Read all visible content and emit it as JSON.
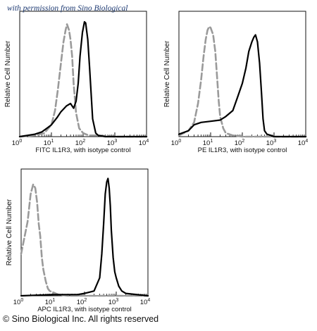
{
  "watermark": "with permission from Sino Biological",
  "copyright": "© Sino Biological Inc. All rights reserved",
  "chart_data": [
    {
      "type": "area",
      "x_scale": "log",
      "xlim": [
        1,
        10000
      ],
      "x_ticks": [
        {
          "base": "10",
          "exp": "0"
        },
        {
          "base": "10",
          "exp": "1"
        },
        {
          "base": "10",
          "exp": "2"
        },
        {
          "base": "10",
          "exp": "3"
        },
        {
          "base": "10",
          "exp": "4"
        }
      ],
      "xlabel": "FITC  IL1R3,  with isotype control",
      "ylabel": "Relative Cell Number",
      "ylim": [
        0,
        1
      ],
      "grid": false,
      "series": [
        {
          "role": "isotype control",
          "color": "#9a9a9a",
          "style": "dashed",
          "x": [
            1,
            3,
            6,
            10,
            13,
            16,
            20,
            24,
            28,
            31,
            36,
            40,
            45,
            50,
            60,
            75,
            100,
            150,
            300,
            1000,
            10000
          ],
          "y": [
            0.0,
            0.01,
            0.03,
            0.1,
            0.22,
            0.4,
            0.62,
            0.8,
            0.9,
            0.95,
            0.9,
            0.82,
            0.68,
            0.45,
            0.2,
            0.07,
            0.03,
            0.01,
            0.01,
            0.0,
            0.0
          ]
        },
        {
          "role": "IL1R3",
          "color": "#000000",
          "style": "solid",
          "x": [
            1,
            3,
            5,
            8,
            10,
            15,
            20,
            30,
            40,
            50,
            60,
            70,
            80,
            95,
            110,
            120,
            140,
            160,
            180,
            200,
            250,
            300,
            500,
            1000,
            10000
          ],
          "y": [
            0.0,
            0.02,
            0.04,
            0.08,
            0.1,
            0.16,
            0.21,
            0.26,
            0.28,
            0.24,
            0.3,
            0.45,
            0.68,
            0.88,
            0.97,
            0.96,
            0.82,
            0.58,
            0.35,
            0.15,
            0.03,
            0.01,
            0.0,
            0.0,
            0.0
          ]
        }
      ]
    },
    {
      "type": "area",
      "x_scale": "log",
      "xlim": [
        1,
        10000
      ],
      "x_ticks": [
        {
          "base": "10",
          "exp": "0"
        },
        {
          "base": "10",
          "exp": "1"
        },
        {
          "base": "10",
          "exp": "2"
        },
        {
          "base": "10",
          "exp": "3"
        },
        {
          "base": "10",
          "exp": "4"
        }
      ],
      "xlabel": "PE  IL1R3,  with isotype control",
      "ylabel": "Relative Cell Number",
      "ylim": [
        0,
        1
      ],
      "grid": false,
      "series": [
        {
          "role": "isotype control",
          "color": "#9a9a9a",
          "style": "dashed",
          "x": [
            1,
            2,
            3,
            4,
            5,
            6,
            7,
            8,
            9,
            10,
            12,
            14,
            16,
            18,
            20,
            25,
            30,
            50,
            100,
            1000,
            10000
          ],
          "y": [
            0.01,
            0.05,
            0.12,
            0.28,
            0.48,
            0.68,
            0.82,
            0.9,
            0.93,
            0.92,
            0.86,
            0.72,
            0.5,
            0.3,
            0.17,
            0.07,
            0.03,
            0.01,
            0.0,
            0.0,
            0.0
          ]
        },
        {
          "role": "IL1R3",
          "color": "#000000",
          "style": "solid",
          "x": [
            1,
            2,
            3,
            5,
            10,
            20,
            30,
            50,
            70,
            100,
            130,
            160,
            200,
            230,
            260,
            300,
            350,
            400,
            450,
            500,
            600,
            800,
            1000,
            10000
          ],
          "y": [
            0.02,
            0.05,
            0.1,
            0.12,
            0.13,
            0.14,
            0.17,
            0.22,
            0.33,
            0.45,
            0.58,
            0.72,
            0.8,
            0.84,
            0.86,
            0.8,
            0.62,
            0.38,
            0.15,
            0.05,
            0.02,
            0.01,
            0.0,
            0.0
          ]
        }
      ]
    },
    {
      "type": "area",
      "x_scale": "log",
      "xlim": [
        1,
        10000
      ],
      "x_ticks": [
        {
          "base": "10",
          "exp": "0"
        },
        {
          "base": "10",
          "exp": "1"
        },
        {
          "base": "10",
          "exp": "2"
        },
        {
          "base": "10",
          "exp": "3"
        },
        {
          "base": "10",
          "exp": "4"
        }
      ],
      "xlabel": "APC IL1R3, with isotype control",
      "ylabel": "Relative Cell Number",
      "ylim": [
        0,
        1
      ],
      "grid": false,
      "series": [
        {
          "role": "isotype control",
          "color": "#9a9a9a",
          "style": "dashed",
          "x": [
            1,
            1.3,
            1.6,
            2.0,
            2.4,
            2.8,
            3.2,
            3.6,
            4.0,
            4.5,
            5,
            6,
            7,
            8,
            10,
            15,
            30,
            100,
            10000
          ],
          "y": [
            0.35,
            0.5,
            0.62,
            0.85,
            0.93,
            0.9,
            0.78,
            0.6,
            0.5,
            0.32,
            0.22,
            0.12,
            0.06,
            0.04,
            0.03,
            0.01,
            0.0,
            0.0,
            0.0
          ]
        },
        {
          "role": "IL1R3",
          "color": "#000000",
          "style": "solid",
          "x": [
            1,
            10,
            30,
            60,
            100,
            200,
            300,
            350,
            400,
            450,
            500,
            550,
            600,
            650,
            700,
            800,
            900,
            1000,
            1200,
            1500,
            2000,
            10000
          ],
          "y": [
            0.0,
            0.01,
            0.01,
            0.01,
            0.02,
            0.04,
            0.15,
            0.35,
            0.6,
            0.85,
            0.95,
            0.98,
            0.9,
            0.75,
            0.55,
            0.32,
            0.2,
            0.15,
            0.08,
            0.04,
            0.02,
            0.0
          ]
        }
      ]
    }
  ]
}
